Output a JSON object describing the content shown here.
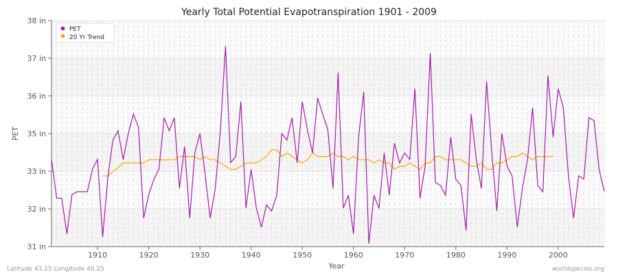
{
  "chart_data": {
    "type": "line",
    "title": "Yearly Total Potential Evapotranspiration 1901 - 2009",
    "xlabel": "Year",
    "ylabel": "PET",
    "xlim": [
      1901,
      2009
    ],
    "ylim": [
      31,
      38
    ],
    "x_ticks": [
      1910,
      1920,
      1930,
      1940,
      1950,
      1960,
      1970,
      1980,
      1990,
      2000
    ],
    "y_ticks": [
      {
        "value": 31,
        "label": "31 in"
      },
      {
        "value": 32.1667,
        "label": "32 in"
      },
      {
        "value": 33.3333,
        "label": "33 in"
      },
      {
        "value": 34.5,
        "label": "35 in"
      },
      {
        "value": 35.6667,
        "label": "36 in"
      },
      {
        "value": 36.8333,
        "label": "37 in"
      },
      {
        "value": 38,
        "label": "38 in"
      }
    ],
    "grid": true,
    "legend_position": "top-left",
    "series": [
      {
        "name": "PET",
        "color": "#a319a8",
        "points": [
          [
            1901,
            33.71
          ],
          [
            1902,
            32.5
          ],
          [
            1903,
            32.5
          ],
          [
            1904,
            31.39
          ],
          [
            1905,
            32.61
          ],
          [
            1906,
            32.7
          ],
          [
            1907,
            32.7
          ],
          [
            1908,
            32.7
          ],
          [
            1909,
            33.4
          ],
          [
            1910,
            33.7
          ],
          [
            1911,
            31.3
          ],
          [
            1912,
            33.12
          ],
          [
            1913,
            34.3
          ],
          [
            1914,
            34.59
          ],
          [
            1915,
            33.69
          ],
          [
            1916,
            34.5
          ],
          [
            1917,
            35.1
          ],
          [
            1918,
            34.69
          ],
          [
            1919,
            31.88
          ],
          [
            1920,
            32.61
          ],
          [
            1921,
            33.09
          ],
          [
            1922,
            33.4
          ],
          [
            1923,
            34.99
          ],
          [
            1924,
            34.59
          ],
          [
            1925,
            34.99
          ],
          [
            1926,
            32.8
          ],
          [
            1927,
            34.1
          ],
          [
            1928,
            31.88
          ],
          [
            1929,
            33.9
          ],
          [
            1930,
            34.5
          ],
          [
            1931,
            33.26
          ],
          [
            1932,
            31.88
          ],
          [
            1933,
            32.8
          ],
          [
            1934,
            34.6
          ],
          [
            1935,
            37.21
          ],
          [
            1936,
            33.6
          ],
          [
            1937,
            33.79
          ],
          [
            1938,
            35.49
          ],
          [
            1939,
            32.19
          ],
          [
            1940,
            33.39
          ],
          [
            1941,
            32.22
          ],
          [
            1942,
            31.6
          ],
          [
            1943,
            32.29
          ],
          [
            1944,
            32.1
          ],
          [
            1945,
            32.59
          ],
          [
            1946,
            34.5
          ],
          [
            1947,
            34.3
          ],
          [
            1948,
            34.99
          ],
          [
            1949,
            33.59
          ],
          [
            1950,
            35.49
          ],
          [
            1951,
            34.61
          ],
          [
            1952,
            33.9
          ],
          [
            1953,
            35.6
          ],
          [
            1954,
            35.1
          ],
          [
            1955,
            34.61
          ],
          [
            1956,
            32.8
          ],
          [
            1957,
            36.39
          ],
          [
            1958,
            32.19
          ],
          [
            1959,
            32.59
          ],
          [
            1960,
            31.39
          ],
          [
            1961,
            34.39
          ],
          [
            1962,
            35.79
          ],
          [
            1963,
            31.09
          ],
          [
            1964,
            32.59
          ],
          [
            1965,
            32.18
          ],
          [
            1966,
            33.9
          ],
          [
            1967,
            32.59
          ],
          [
            1968,
            34.2
          ],
          [
            1969,
            33.59
          ],
          [
            1970,
            33.9
          ],
          [
            1971,
            33.7
          ],
          [
            1972,
            35.89
          ],
          [
            1973,
            32.5
          ],
          [
            1974,
            33.49
          ],
          [
            1975,
            37.0
          ],
          [
            1976,
            32.99
          ],
          [
            1977,
            32.89
          ],
          [
            1978,
            32.59
          ],
          [
            1979,
            34.39
          ],
          [
            1980,
            33.09
          ],
          [
            1981,
            32.89
          ],
          [
            1982,
            31.5
          ],
          [
            1983,
            35.1
          ],
          [
            1984,
            33.69
          ],
          [
            1985,
            32.8
          ],
          [
            1986,
            36.11
          ],
          [
            1987,
            33.97
          ],
          [
            1988,
            32.1
          ],
          [
            1989,
            34.5
          ],
          [
            1990,
            33.49
          ],
          [
            1991,
            33.19
          ],
          [
            1992,
            31.6
          ],
          [
            1993,
            32.8
          ],
          [
            1994,
            33.69
          ],
          [
            1995,
            35.3
          ],
          [
            1996,
            32.89
          ],
          [
            1997,
            32.7
          ],
          [
            1998,
            36.3
          ],
          [
            1999,
            34.39
          ],
          [
            2000,
            35.89
          ],
          [
            2001,
            35.3
          ],
          [
            2002,
            33.19
          ],
          [
            2003,
            31.88
          ],
          [
            2004,
            33.19
          ],
          [
            2005,
            33.09
          ],
          [
            2006,
            34.99
          ],
          [
            2007,
            34.9
          ],
          [
            2008,
            33.39
          ],
          [
            2009,
            32.71
          ]
        ]
      },
      {
        "name": "20 Yr Trend",
        "color": "#ffa500",
        "points": [
          [
            1911,
            33.19
          ],
          [
            1912,
            33.19
          ],
          [
            1913,
            33.32
          ],
          [
            1914,
            33.45
          ],
          [
            1915,
            33.59
          ],
          [
            1916,
            33.59
          ],
          [
            1917,
            33.59
          ],
          [
            1918,
            33.59
          ],
          [
            1919,
            33.59
          ],
          [
            1920,
            33.69
          ],
          [
            1921,
            33.69
          ],
          [
            1922,
            33.69
          ],
          [
            1923,
            33.69
          ],
          [
            1924,
            33.69
          ],
          [
            1925,
            33.69
          ],
          [
            1926,
            33.79
          ],
          [
            1927,
            33.79
          ],
          [
            1928,
            33.79
          ],
          [
            1929,
            33.79
          ],
          [
            1930,
            33.69
          ],
          [
            1931,
            33.79
          ],
          [
            1932,
            33.69
          ],
          [
            1933,
            33.69
          ],
          [
            1934,
            33.59
          ],
          [
            1935,
            33.49
          ],
          [
            1936,
            33.39
          ],
          [
            1937,
            33.39
          ],
          [
            1938,
            33.49
          ],
          [
            1939,
            33.59
          ],
          [
            1940,
            33.59
          ],
          [
            1941,
            33.59
          ],
          [
            1942,
            33.69
          ],
          [
            1943,
            33.79
          ],
          [
            1944,
            34.0
          ],
          [
            1945,
            34.0
          ],
          [
            1946,
            33.79
          ],
          [
            1947,
            33.9
          ],
          [
            1948,
            33.79
          ],
          [
            1949,
            33.69
          ],
          [
            1950,
            33.59
          ],
          [
            1951,
            33.69
          ],
          [
            1952,
            33.9
          ],
          [
            1953,
            33.79
          ],
          [
            1954,
            33.79
          ],
          [
            1955,
            33.79
          ],
          [
            1956,
            33.9
          ],
          [
            1957,
            33.79
          ],
          [
            1958,
            33.79
          ],
          [
            1959,
            33.69
          ],
          [
            1960,
            33.79
          ],
          [
            1961,
            33.69
          ],
          [
            1962,
            33.69
          ],
          [
            1963,
            33.69
          ],
          [
            1964,
            33.59
          ],
          [
            1965,
            33.69
          ],
          [
            1966,
            33.59
          ],
          [
            1967,
            33.59
          ],
          [
            1968,
            33.39
          ],
          [
            1969,
            33.49
          ],
          [
            1970,
            33.49
          ],
          [
            1971,
            33.59
          ],
          [
            1972,
            33.49
          ],
          [
            1973,
            33.39
          ],
          [
            1974,
            33.59
          ],
          [
            1975,
            33.59
          ],
          [
            1976,
            33.79
          ],
          [
            1977,
            33.79
          ],
          [
            1978,
            33.69
          ],
          [
            1979,
            33.69
          ],
          [
            1980,
            33.69
          ],
          [
            1981,
            33.69
          ],
          [
            1982,
            33.59
          ],
          [
            1983,
            33.49
          ],
          [
            1984,
            33.49
          ],
          [
            1985,
            33.59
          ],
          [
            1986,
            33.39
          ],
          [
            1987,
            33.39
          ],
          [
            1988,
            33.59
          ],
          [
            1989,
            33.59
          ],
          [
            1990,
            33.69
          ],
          [
            1991,
            33.79
          ],
          [
            1992,
            33.79
          ],
          [
            1993,
            33.9
          ],
          [
            1994,
            33.79
          ],
          [
            1995,
            33.69
          ],
          [
            1996,
            33.79
          ],
          [
            1997,
            33.79
          ],
          [
            1998,
            33.79
          ],
          [
            1999,
            33.79
          ]
        ]
      }
    ]
  },
  "footer": {
    "location": "Latitude 43.25 Longitude 46.25",
    "source": "worldspecies.org"
  }
}
